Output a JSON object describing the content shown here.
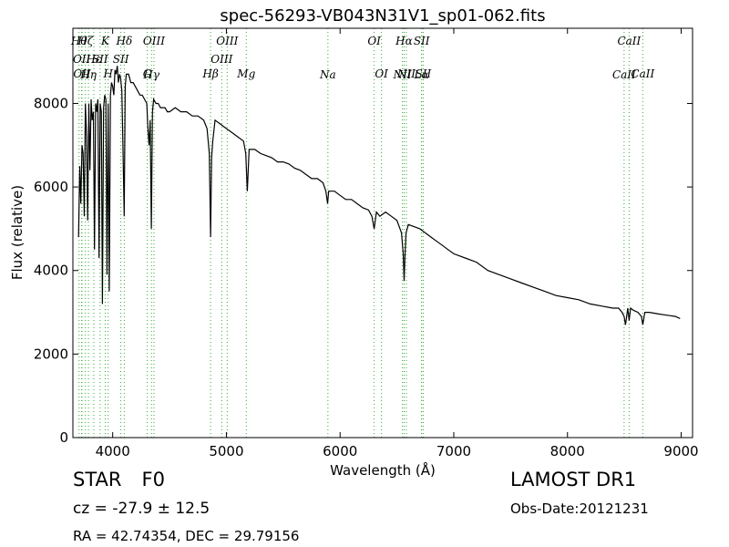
{
  "chart_data": {
    "type": "line",
    "title": "spec-56293-VB043N31V1_sp01-062.fits",
    "xlabel": "Wavelength (Å)",
    "ylabel": "Flux (relative)",
    "xlim": [
      3650,
      9100
    ],
    "ylim": [
      0,
      9800
    ],
    "xticks": [
      4000,
      5000,
      6000,
      7000,
      8000,
      9000
    ],
    "yticks": [
      0,
      2000,
      4000,
      6000,
      8000
    ],
    "grid": false,
    "legend": "none",
    "line_color": "#000000",
    "marker_color": "#33aa33",
    "series": [
      {
        "x": [
          3700,
          3710,
          3720,
          3730,
          3740,
          3750,
          3760,
          3770,
          3780,
          3790,
          3800,
          3810,
          3820,
          3830,
          3840,
          3850,
          3860,
          3870,
          3880,
          3890,
          3900,
          3910,
          3920,
          3930,
          3940,
          3950,
          3960,
          3970,
          3980,
          3990,
          4000,
          4010,
          4020,
          4030,
          4040,
          4050,
          4060,
          4070,
          4080,
          4090,
          4101,
          4110,
          4120,
          4140,
          4160,
          4180,
          4200,
          4220,
          4240,
          4260,
          4280,
          4300,
          4310,
          4320,
          4330,
          4340,
          4350,
          4360,
          4380,
          4400,
          4420,
          4440,
          4460,
          4480,
          4500,
          4550,
          4600,
          4650,
          4700,
          4750,
          4800,
          4830,
          4850,
          4861,
          4870,
          4880,
          4900,
          4950,
          5000,
          5050,
          5100,
          5150,
          5170,
          5184,
          5200,
          5250,
          5300,
          5350,
          5400,
          5450,
          5500,
          5550,
          5600,
          5650,
          5700,
          5750,
          5800,
          5850,
          5875,
          5890,
          5900,
          5950,
          6000,
          6050,
          6100,
          6150,
          6200,
          6250,
          6280,
          6300,
          6320,
          6350,
          6400,
          6450,
          6500,
          6540,
          6555,
          6563,
          6570,
          6580,
          6600,
          6650,
          6700,
          6750,
          6800,
          6850,
          6900,
          6950,
          7000,
          7100,
          7200,
          7300,
          7400,
          7500,
          7600,
          7700,
          7800,
          7900,
          8000,
          8100,
          8200,
          8300,
          8400,
          8450,
          8480,
          8498,
          8510,
          8530,
          8542,
          8555,
          8580,
          8620,
          8650,
          8662,
          8680,
          8720,
          8760,
          8800,
          8850,
          8900,
          8950,
          8990
        ],
        "values": [
          4800,
          6500,
          5600,
          7000,
          6800,
          5300,
          8000,
          7200,
          5200,
          8000,
          6400,
          8100,
          7600,
          7800,
          4500,
          8000,
          7800,
          8100,
          4300,
          8000,
          7800,
          3200,
          7900,
          8200,
          8100,
          3900,
          8000,
          3500,
          8200,
          8500,
          8400,
          8200,
          8800,
          8700,
          8900,
          8500,
          8700,
          8600,
          8300,
          7000,
          5300,
          8400,
          8700,
          8700,
          8500,
          8500,
          8400,
          8300,
          8200,
          8200,
          8100,
          8000,
          7400,
          7000,
          7600,
          5000,
          7800,
          8100,
          8000,
          8000,
          7900,
          7900,
          7900,
          7800,
          7800,
          7900,
          7800,
          7800,
          7700,
          7700,
          7600,
          7400,
          6800,
          4800,
          6700,
          7100,
          7600,
          7500,
          7400,
          7300,
          7200,
          7100,
          6800,
          5900,
          6900,
          6900,
          6800,
          6750,
          6700,
          6600,
          6600,
          6550,
          6450,
          6400,
          6300,
          6200,
          6200,
          6100,
          5900,
          5600,
          5900,
          5900,
          5800,
          5700,
          5700,
          5600,
          5500,
          5450,
          5300,
          5000,
          5400,
          5300,
          5400,
          5300,
          5200,
          4900,
          4400,
          3750,
          4300,
          4900,
          5100,
          5050,
          5000,
          4900,
          4800,
          4700,
          4600,
          4500,
          4400,
          4300,
          4200,
          4000,
          3900,
          3800,
          3700,
          3600,
          3500,
          3400,
          3350,
          3300,
          3200,
          3150,
          3100,
          3100,
          3000,
          2900,
          2700,
          3100,
          2800,
          3100,
          3050,
          3000,
          2900,
          2700,
          3000,
          3000,
          2980,
          2960,
          2940,
          2920,
          2900,
          2850
        ]
      }
    ],
    "lines": [
      {
        "x": 3704,
        "label": "Hθ",
        "row": 1
      },
      {
        "x": 3727,
        "label": "OII",
        "row": 2
      },
      {
        "x": 3730,
        "label": "OII",
        "row": 4
      },
      {
        "x": 3760,
        "label": "Hζ",
        "row": 1
      },
      {
        "x": 3787,
        "label": "Hη",
        "row": 3
      },
      {
        "x": 3834,
        "label": "Hε",
        "row": 2
      },
      {
        "x": 3889,
        "label": "SII",
        "row": 2
      },
      {
        "x": 3934,
        "label": "K",
        "row": 1
      },
      {
        "x": 3960,
        "label": "H",
        "row": 4
      },
      {
        "x": 4072,
        "label": "SII",
        "row": 2
      },
      {
        "x": 4102,
        "label": "Hδ",
        "row": 1
      },
      {
        "x": 4304,
        "label": "G",
        "row": 4
      },
      {
        "x": 4341,
        "label": "Hγ",
        "row": 3
      },
      {
        "x": 4363,
        "label": "OIII",
        "row": 1
      },
      {
        "x": 4861,
        "label": "Hβ",
        "row": 4
      },
      {
        "x": 4959,
        "label": "OIII",
        "row": 2
      },
      {
        "x": 5007,
        "label": "OIII",
        "row": 1
      },
      {
        "x": 5175,
        "label": "Mg",
        "row": 4
      },
      {
        "x": 5893,
        "label": "Na",
        "row": 3
      },
      {
        "x": 6300,
        "label": "OI",
        "row": 1
      },
      {
        "x": 6364,
        "label": "OI",
        "row": 4
      },
      {
        "x": 6548,
        "label": "NII",
        "row": 3
      },
      {
        "x": 6563,
        "label": "Hα",
        "row": 1
      },
      {
        "x": 6583,
        "label": "NII",
        "row": 4
      },
      {
        "x": 6716,
        "label": "Lα",
        "row": 3
      },
      {
        "x": 6717,
        "label": "SII",
        "row": 1
      },
      {
        "x": 6731,
        "label": "SII",
        "row": 4
      },
      {
        "x": 8498,
        "label": "CaII",
        "row": 3
      },
      {
        "x": 8542,
        "label": "CaII",
        "row": 1
      },
      {
        "x": 8662,
        "label": "CaII",
        "row": 4
      }
    ]
  },
  "info": {
    "class_label": "STAR",
    "subclass": "F0",
    "redshift": "cz = -27.9 ± 12.5",
    "coords": "RA = 42.74354, DEC = 29.79156",
    "survey": "LAMOST DR1",
    "obs_date": "Obs-Date:20121231"
  }
}
